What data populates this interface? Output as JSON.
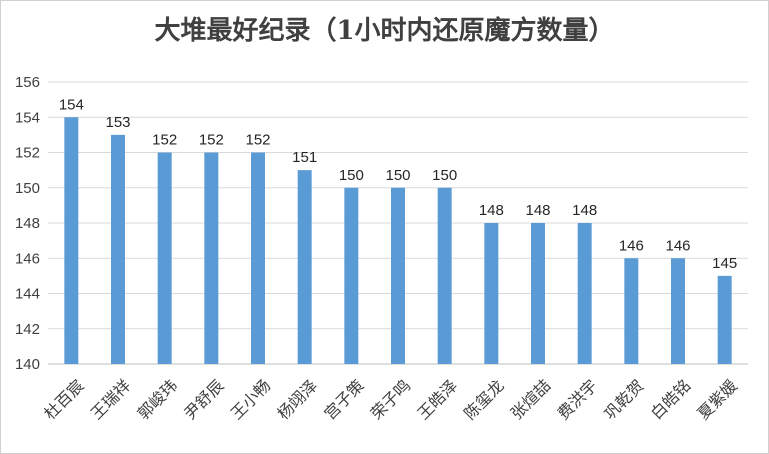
{
  "chart_data": {
    "type": "bar",
    "title": "大堆最好纪录（1小时内还原魔方数量）",
    "xlabel": "",
    "ylabel": "",
    "ylim": [
      140,
      156
    ],
    "yticks": [
      140,
      142,
      144,
      146,
      148,
      150,
      152,
      154,
      156
    ],
    "grid": true,
    "bar_color": "#5b9bd5",
    "categories": [
      "杜百宸",
      "王瑞祥",
      "郭峻玮",
      "尹舒辰",
      "王小畅",
      "杨翊泽",
      "宫子策",
      "荣子鸣",
      "王皓泽",
      "陈玺龙",
      "张煊喆",
      "费洪宇",
      "巩乾贺",
      "白皓铭",
      "夏紫媛"
    ],
    "values": [
      154,
      153,
      152,
      152,
      152,
      151,
      150,
      150,
      150,
      148,
      148,
      148,
      146,
      146,
      145
    ]
  }
}
